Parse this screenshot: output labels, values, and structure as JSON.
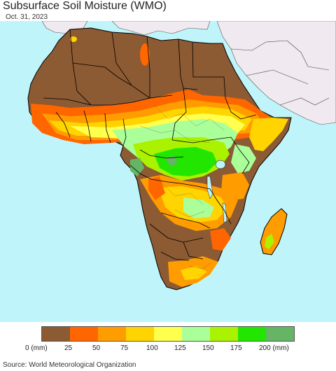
{
  "title": "Subsurface Soil Moisture (WMO)",
  "date": "Oct. 31, 2023",
  "source": "Source: World Meteorological Organization",
  "legend": {
    "colors": [
      "#8c5a33",
      "#ff6600",
      "#ff9d00",
      "#ffd400",
      "#ffff4d",
      "#aaff99",
      "#aaf200",
      "#22e600",
      "#66b466"
    ],
    "labels": [
      "0 (mm)",
      "25",
      "50",
      "75",
      "100",
      "125",
      "150",
      "175",
      "200 (mm)"
    ]
  },
  "colors": {
    "ocean": "#bff5fa",
    "non_africa_land": "#f0e9f0",
    "border": "#000000"
  }
}
